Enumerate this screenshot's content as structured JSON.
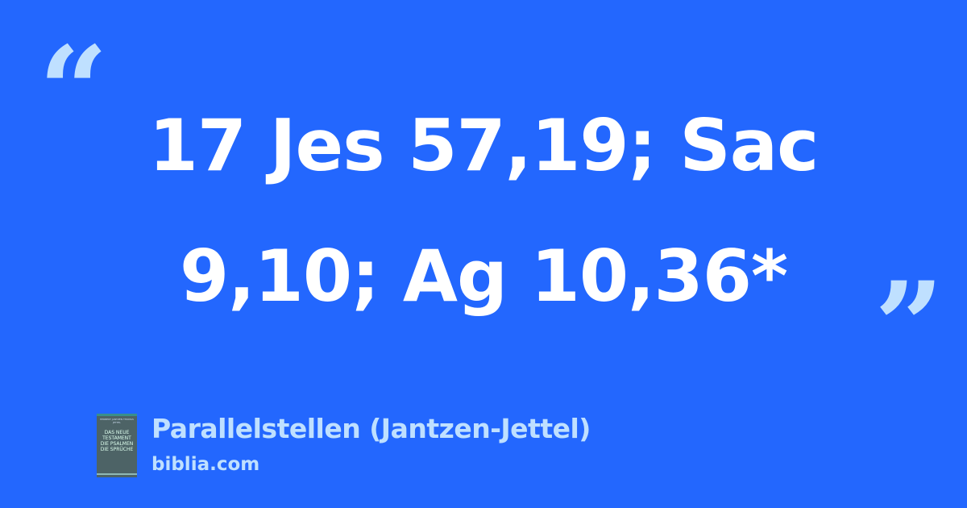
{
  "quote": {
    "open_mark": "“",
    "close_mark": "”",
    "line1": "17 Jes 57,19; Sac",
    "line2": "9,10; Ag 10,36*"
  },
  "source": {
    "title": "Parallelstellen (Jantzen-Jettel)",
    "site": "biblia.com",
    "cover": {
      "authors": "HERBERT JANTZEN THOMAS JETTEL",
      "text": "DAS NEUE TESTAMENT DIE PSALMEN DIE SPRÜCHE"
    }
  },
  "colors": {
    "background": "#2367fe",
    "accent": "#bfe0ff",
    "text": "#ffffff"
  }
}
